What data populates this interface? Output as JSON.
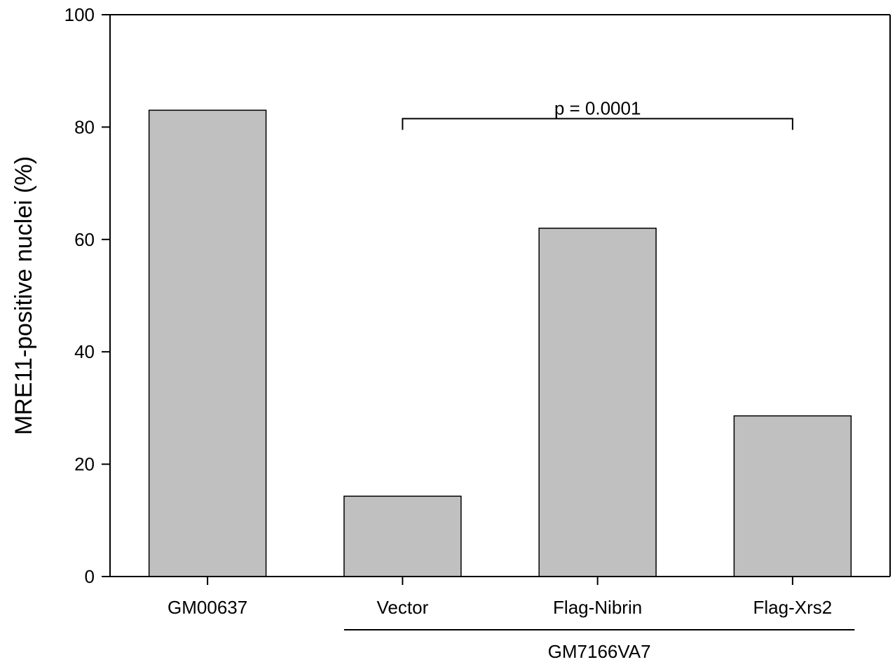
{
  "chart_data": {
    "type": "bar",
    "title": "",
    "xlabel": "",
    "ylabel": "MRE11-positive nuclei (%)",
    "categories": [
      "GM00637",
      "Vector",
      "Flag-Nibrin",
      "Flag-Xrs2"
    ],
    "values": [
      83,
      14.3,
      62,
      28.6
    ],
    "ylim": [
      0,
      100
    ],
    "yticks": [
      0,
      20,
      40,
      60,
      80,
      100
    ],
    "bar_color": "#c0c0c0",
    "bar_edge_color": "#000000",
    "grid": false,
    "legend": "none",
    "group": {
      "label": "GM7166VA7",
      "from_category": 1,
      "to_category": 3
    },
    "significance": {
      "label": "p = 0.0001",
      "from_category": 1,
      "to_category": 3,
      "at_value": 81.5
    }
  }
}
